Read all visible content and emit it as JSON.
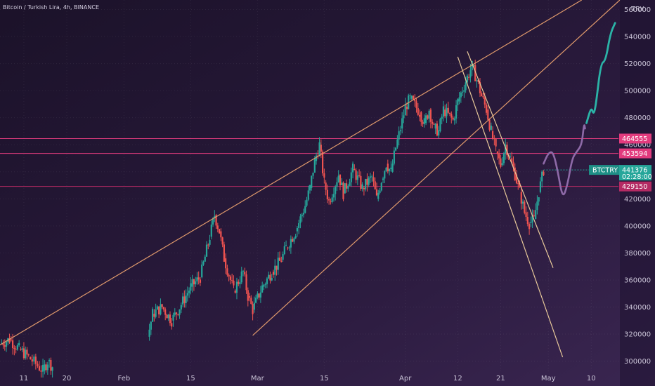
{
  "chart_data": {
    "type": "candlestick",
    "title": "Bitcoin / Turkish Lira, 4h, BINANCE",
    "currency": "TRY",
    "symbol": "BTCTRY",
    "last_price": "441376",
    "countdown": "02:28:00",
    "ylim": [
      292000,
      567000
    ],
    "y_ticks": [
      {
        "value": 300000,
        "label": "300000"
      },
      {
        "value": 320000,
        "label": "320000"
      },
      {
        "value": 340000,
        "label": "340000"
      },
      {
        "value": 360000,
        "label": "360000"
      },
      {
        "value": 380000,
        "label": "380000"
      },
      {
        "value": 400000,
        "label": "400000"
      },
      {
        "value": 420000,
        "label": "420000"
      },
      {
        "value": 440000,
        "label": "440000"
      },
      {
        "value": 460000,
        "label": "460000"
      },
      {
        "value": 480000,
        "label": "480000"
      },
      {
        "value": 500000,
        "label": "500000"
      },
      {
        "value": 520000,
        "label": "520000"
      },
      {
        "value": 540000,
        "label": "540000"
      },
      {
        "value": 560000,
        "label": "560000"
      }
    ],
    "x_ticks": [
      {
        "day": 11,
        "label": "11"
      },
      {
        "day": 20,
        "label": "20"
      },
      {
        "day": 32,
        "label": "Feb"
      },
      {
        "day": 46,
        "label": "15"
      },
      {
        "day": 60,
        "label": "Mar"
      },
      {
        "day": 74,
        "label": "15"
      },
      {
        "day": 91,
        "label": "Apr"
      },
      {
        "day": 102,
        "label": "12"
      },
      {
        "day": 111,
        "label": "21"
      },
      {
        "day": 121,
        "label": "May"
      },
      {
        "day": 130,
        "label": "10"
      }
    ],
    "x_domain": [
      6,
      136
    ],
    "horizontal_levels": [
      {
        "value": 464555,
        "label": "464555",
        "color": "#e23b7e"
      },
      {
        "value": 453594,
        "label": "453594",
        "color": "#e23b7e"
      },
      {
        "value": 429150,
        "label": "429150",
        "color": "#b42a63"
      }
    ],
    "price_path": [
      {
        "day": 6,
        "price": 313000
      },
      {
        "day": 8,
        "price": 316000
      },
      {
        "day": 10,
        "price": 309000
      },
      {
        "day": 12,
        "price": 303000
      },
      {
        "day": 15,
        "price": 293000
      },
      {
        "day": 16,
        "price": 300000
      },
      {
        "day": 17,
        "price": 296000
      },
      {
        "day": 37,
        "price": 318000
      },
      {
        "day": 38,
        "price": 335000
      },
      {
        "day": 40,
        "price": 340000
      },
      {
        "day": 42,
        "price": 330000
      },
      {
        "day": 44,
        "price": 342000
      },
      {
        "day": 46,
        "price": 355000
      },
      {
        "day": 48,
        "price": 362000
      },
      {
        "day": 50,
        "price": 392000
      },
      {
        "day": 51,
        "price": 408000
      },
      {
        "day": 52,
        "price": 396000
      },
      {
        "day": 53,
        "price": 376000
      },
      {
        "day": 55,
        "price": 352000
      },
      {
        "day": 57,
        "price": 366000
      },
      {
        "day": 58,
        "price": 348000
      },
      {
        "day": 59,
        "price": 338000
      },
      {
        "day": 61,
        "price": 355000
      },
      {
        "day": 63,
        "price": 366000
      },
      {
        "day": 65,
        "price": 375000
      },
      {
        "day": 66,
        "price": 384000
      },
      {
        "day": 68,
        "price": 396000
      },
      {
        "day": 70,
        "price": 415000
      },
      {
        "day": 71,
        "price": 428000
      },
      {
        "day": 72,
        "price": 448000
      },
      {
        "day": 73,
        "price": 460000
      },
      {
        "day": 74,
        "price": 432000
      },
      {
        "day": 75,
        "price": 418000
      },
      {
        "day": 77,
        "price": 438000
      },
      {
        "day": 78,
        "price": 424000
      },
      {
        "day": 80,
        "price": 442000
      },
      {
        "day": 82,
        "price": 428000
      },
      {
        "day": 84,
        "price": 436000
      },
      {
        "day": 85,
        "price": 420000
      },
      {
        "day": 86,
        "price": 434000
      },
      {
        "day": 87,
        "price": 446000
      },
      {
        "day": 88,
        "price": 440000
      },
      {
        "day": 89,
        "price": 458000
      },
      {
        "day": 90,
        "price": 472000
      },
      {
        "day": 91,
        "price": 488000
      },
      {
        "day": 92,
        "price": 494000
      },
      {
        "day": 94,
        "price": 484000
      },
      {
        "day": 95,
        "price": 476000
      },
      {
        "day": 96,
        "price": 486000
      },
      {
        "day": 97,
        "price": 472000
      },
      {
        "day": 98,
        "price": 470000
      },
      {
        "day": 99,
        "price": 486000
      },
      {
        "day": 101,
        "price": 478000
      },
      {
        "day": 102,
        "price": 492000
      },
      {
        "day": 104,
        "price": 510000
      },
      {
        "day": 105,
        "price": 518000
      },
      {
        "day": 106,
        "price": 508000
      },
      {
        "day": 107,
        "price": 496000
      },
      {
        "day": 108,
        "price": 486000
      },
      {
        "day": 109,
        "price": 470000
      },
      {
        "day": 110,
        "price": 455000
      },
      {
        "day": 111,
        "price": 445000
      },
      {
        "day": 112,
        "price": 460000
      },
      {
        "day": 113,
        "price": 450000
      },
      {
        "day": 114,
        "price": 438000
      },
      {
        "day": 115,
        "price": 425000
      },
      {
        "day": 116,
        "price": 410000
      },
      {
        "day": 117,
        "price": 402000
      },
      {
        "day": 118,
        "price": 405000
      },
      {
        "day": 119,
        "price": 425000
      },
      {
        "day": 120,
        "price": 441376
      }
    ],
    "trend_lines": [
      {
        "from": {
          "day": 6,
          "price": 312000
        },
        "to": {
          "day": 128,
          "price": 567000
        },
        "color": "#e09a6c"
      },
      {
        "from": {
          "day": 59,
          "price": 319000
        },
        "to": {
          "day": 136,
          "price": 567000
        },
        "color": "#e09a6c"
      },
      {
        "from": {
          "day": 102,
          "price": 525000
        },
        "to": {
          "day": 124,
          "price": 303000
        },
        "color": "#e8c99a"
      },
      {
        "from": {
          "day": 104,
          "price": 529000
        },
        "to": {
          "day": 122,
          "price": 369000
        },
        "color": "#e8c99a"
      }
    ],
    "projection_purple": [
      {
        "day": 120,
        "price": 446000
      },
      {
        "day": 121,
        "price": 454000
      },
      {
        "day": 122,
        "price": 455000
      },
      {
        "day": 123,
        "price": 440000
      },
      {
        "day": 124,
        "price": 420000
      },
      {
        "day": 125,
        "price": 430000
      },
      {
        "day": 126,
        "price": 450000
      },
      {
        "day": 127,
        "price": 455000
      },
      {
        "day": 128,
        "price": 460000
      },
      {
        "day": 128.5,
        "price": 476000
      },
      {
        "day": 128.7,
        "price": 472000
      }
    ],
    "projection_teal": [
      {
        "day": 129,
        "price": 476000
      },
      {
        "day": 130,
        "price": 488000
      },
      {
        "day": 130.5,
        "price": 482000
      },
      {
        "day": 131,
        "price": 490000
      },
      {
        "day": 132,
        "price": 520000
      },
      {
        "day": 133,
        "price": 522000
      },
      {
        "day": 134,
        "price": 542000
      },
      {
        "day": 135,
        "price": 550000
      }
    ]
  }
}
